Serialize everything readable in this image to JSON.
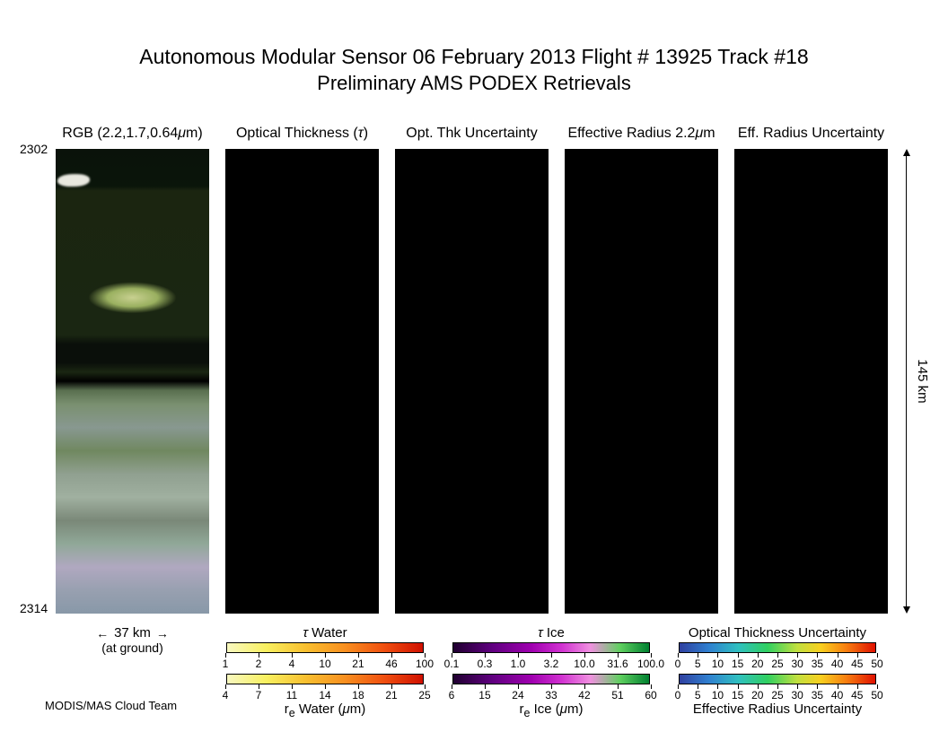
{
  "title_main": "Autonomous Modular Sensor  06 February 2013  Flight # 13925 Track #18",
  "title_sub": "Preliminary AMS PODEX Retrievals",
  "panels": [
    {
      "label": "RGB (2.2,1.7,0.64μm)"
    },
    {
      "label": "Optical Thickness (τ)"
    },
    {
      "label": "Opt. Thk Uncertainty"
    },
    {
      "label": "Effective Radius 2.2μm"
    },
    {
      "label": "Eff. Radius Uncertainty"
    }
  ],
  "y_tick_top": "2302",
  "y_tick_bot": "2314",
  "width_label": "37 km",
  "width_note": "(at ground)",
  "height_label": "145 km",
  "colorbars": {
    "row1": [
      {
        "title": "τ Water",
        "grad": "grad-tau-water",
        "ticks": [
          "1",
          "2",
          "4",
          "10",
          "21",
          "46",
          "100"
        ]
      },
      {
        "title": "τ Ice",
        "grad": "grad-tau-ice",
        "ticks": [
          "0.1",
          "0.3",
          "1.0",
          "3.2",
          "10.0",
          "31.6",
          "100.0"
        ]
      },
      {
        "title": "Optical Thickness Uncertainty",
        "grad": "grad-unc",
        "ticks": [
          "0",
          "5",
          "10",
          "15",
          "20",
          "25",
          "30",
          "35",
          "40",
          "45",
          "50"
        ]
      }
    ],
    "row2": [
      {
        "title": "rₑ Water (μm)",
        "grad": "grad-re-water",
        "ticks": [
          "4",
          "7",
          "11",
          "14",
          "18",
          "21",
          "25"
        ]
      },
      {
        "title": "rₑ Ice (μm)",
        "grad": "grad-re-ice",
        "ticks": [
          "6",
          "15",
          "24",
          "33",
          "42",
          "51",
          "60"
        ]
      },
      {
        "title": "Effective Radius Uncertainty",
        "grad": "grad-unc",
        "ticks": [
          "0",
          "5",
          "10",
          "15",
          "20",
          "25",
          "30",
          "35",
          "40",
          "45",
          "50"
        ]
      }
    ]
  },
  "credit": "MODIS/MAS Cloud Team",
  "colors": {
    "background": "#ffffff",
    "text": "#000000",
    "panel_blank": "#000000"
  }
}
